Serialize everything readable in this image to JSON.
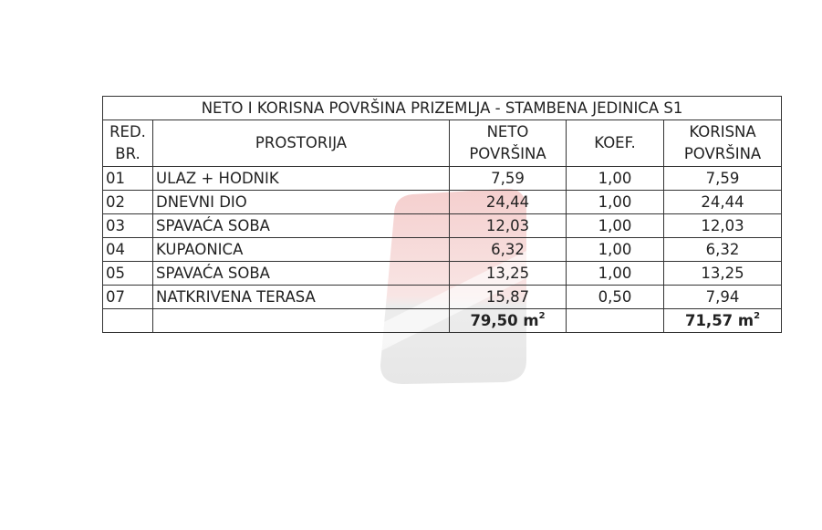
{
  "table": {
    "title": "NETO I KORISNA POVRŠINA PRIZEMLJA - STAMBENA JEDINICA S1",
    "headers": {
      "red_br_1": "RED.",
      "red_br_2": "BR.",
      "prostorija": "PROSTORIJA",
      "neto_1": "NETO",
      "neto_2": "POVRŠINA",
      "koef": "KOEF.",
      "korisna_1": "KORISNA",
      "korisna_2": "POVRŠINA"
    },
    "rows": [
      {
        "rb": "01",
        "room": "ULAZ + HODNIK",
        "neto": "7,59",
        "koef": "1,00",
        "korisna": "7,59"
      },
      {
        "rb": "02",
        "room": "DNEVNI DIO",
        "neto": "24,44",
        "koef": "1,00",
        "korisna": "24,44"
      },
      {
        "rb": "03",
        "room": "SPAVAĆA SOBA",
        "neto": "12,03",
        "koef": "1,00",
        "korisna": "12,03"
      },
      {
        "rb": "04",
        "room": "KUPAONICA",
        "neto": "6,32",
        "koef": "1,00",
        "korisna": "6,32"
      },
      {
        "rb": "05",
        "room": "SPAVAĆA SOBA",
        "neto": "13,25",
        "koef": "1,00",
        "korisna": "13,25"
      },
      {
        "rb": "07",
        "room": "NATKRIVENA TERASA",
        "neto": "15,87",
        "koef": "0,50",
        "korisna": "7,94"
      }
    ],
    "totals": {
      "neto": "79,50 m",
      "korisna": "71,57 m",
      "unit_sup": "2"
    }
  },
  "watermark": {
    "icon": "house-logo-watermark",
    "colors": {
      "top": "#d9534f",
      "bottom": "#9e9e9e"
    }
  }
}
